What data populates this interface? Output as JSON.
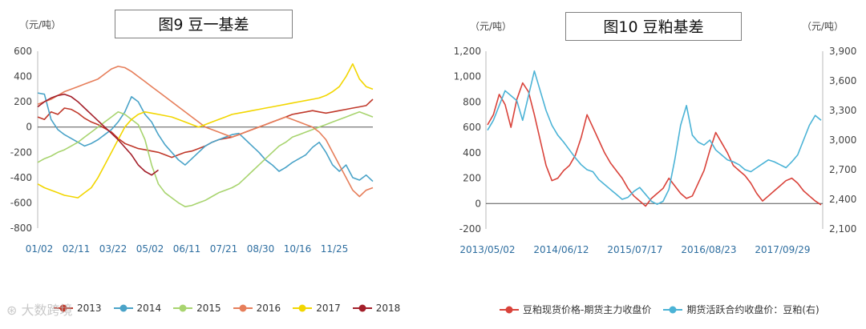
{
  "watermark": "大数跨境",
  "chart_data": [
    {
      "type": "line",
      "title": "图9 豆一基差",
      "unit_label": "（元/吨）",
      "ylim": [
        -800,
        600
      ],
      "yticks": [
        600,
        400,
        200,
        0,
        -200,
        -400,
        -600,
        -800
      ],
      "x_tick_labels": [
        "01/02",
        "02/11",
        "03/22",
        "05/02",
        "06/11",
        "07/21",
        "08/30",
        "10/16",
        "11/25"
      ],
      "grid": false,
      "legend_position": "bottom",
      "series": [
        {
          "name": "2013",
          "color": "#c0392b",
          "values": [
            80,
            60,
            120,
            100,
            150,
            140,
            110,
            70,
            40,
            20,
            -10,
            -40,
            -90,
            -130,
            -150,
            -170,
            -180,
            -190,
            -200,
            -220,
            -240,
            -220,
            -200,
            -190,
            -170,
            -150,
            -120,
            -100,
            -90,
            -80,
            -60,
            -40,
            -20,
            0,
            20,
            40,
            60,
            80,
            100,
            110,
            120,
            130,
            120,
            110,
            120,
            130,
            140,
            150,
            160,
            170,
            220
          ]
        },
        {
          "name": "2014",
          "color": "#4aa3c8",
          "values": [
            270,
            260,
            60,
            -20,
            -60,
            -90,
            -120,
            -150,
            -130,
            -100,
            -60,
            -20,
            40,
            120,
            240,
            200,
            100,
            40,
            -60,
            -140,
            -200,
            -260,
            -300,
            -250,
            -200,
            -150,
            -120,
            -100,
            -80,
            -60,
            -50,
            -100,
            -150,
            -200,
            -260,
            -300,
            -350,
            -320,
            -280,
            -250,
            -220,
            -160,
            -120,
            -200,
            -300,
            -350,
            -300,
            -400,
            -420,
            -380,
            -430
          ]
        },
        {
          "name": "2015",
          "color": "#a8d46f",
          "values": [
            -280,
            -250,
            -230,
            -200,
            -180,
            -150,
            -120,
            -80,
            -40,
            0,
            40,
            80,
            120,
            100,
            60,
            20,
            -100,
            -300,
            -450,
            -520,
            -560,
            -600,
            -630,
            -620,
            -600,
            -580,
            -550,
            -520,
            -500,
            -480,
            -450,
            -400,
            -350,
            -300,
            -250,
            -200,
            -150,
            -120,
            -80,
            -60,
            -40,
            -20,
            0,
            20,
            40,
            60,
            80,
            100,
            120,
            100,
            80
          ]
        },
        {
          "name": "2016",
          "color": "#e67e5a",
          "values": [
            180,
            200,
            220,
            250,
            280,
            300,
            320,
            340,
            360,
            380,
            420,
            460,
            480,
            470,
            440,
            400,
            360,
            320,
            280,
            240,
            200,
            160,
            120,
            80,
            40,
            0,
            -20,
            -40,
            -60,
            -80,
            -60,
            -40,
            -20,
            0,
            20,
            40,
            60,
            80,
            60,
            40,
            20,
            0,
            -40,
            -100,
            -200,
            -300,
            -400,
            -500,
            -550,
            -500,
            -480
          ]
        },
        {
          "name": "2017",
          "color": "#f2d600",
          "values": [
            -450,
            -480,
            -500,
            -520,
            -540,
            -550,
            -560,
            -520,
            -480,
            -400,
            -300,
            -200,
            -100,
            0,
            60,
            100,
            120,
            110,
            100,
            90,
            80,
            60,
            40,
            20,
            0,
            20,
            40,
            60,
            80,
            100,
            110,
            120,
            130,
            140,
            150,
            160,
            170,
            180,
            190,
            200,
            210,
            220,
            230,
            250,
            280,
            320,
            400,
            500,
            380,
            320,
            300
          ]
        },
        {
          "name": "2018",
          "color": "#a31f2a",
          "values": [
            160,
            200,
            230,
            250,
            260,
            240,
            200,
            150,
            100,
            50,
            0,
            -50,
            -100,
            -160,
            -220,
            -300,
            -350,
            -380,
            -340
          ]
        }
      ]
    },
    {
      "type": "line",
      "title": "图10 豆粕基差",
      "unit_label_left": "（元/吨）",
      "unit_label_right": "（元/吨）",
      "ylim": [
        -200,
        1200
      ],
      "yticks": [
        1200,
        1000,
        800,
        600,
        400,
        200,
        0,
        -200
      ],
      "ytick_labels": [
        "1,200",
        "1,000",
        "800",
        "600",
        "400",
        "200",
        "0",
        "-200"
      ],
      "y2lim": [
        2100,
        3900
      ],
      "y2ticks": [
        3900,
        3600,
        3300,
        3000,
        2700,
        2400,
        2100
      ],
      "y2tick_labels": [
        "3,900",
        "3,600",
        "3,300",
        "3,000",
        "2,700",
        "2,400",
        "2,100"
      ],
      "x_tick_labels": [
        "2013/05/02",
        "2014/06/12",
        "2015/07/17",
        "2016/08/23",
        "2017/09/29"
      ],
      "grid": false,
      "legend_position": "bottom",
      "series": [
        {
          "name": "豆粕现货价格-期货主力收盘价",
          "color": "#d9423a",
          "axis": "left",
          "values": [
            620,
            700,
            860,
            780,
            600,
            820,
            950,
            880,
            700,
            500,
            300,
            180,
            200,
            260,
            300,
            380,
            520,
            700,
            600,
            500,
            400,
            320,
            260,
            200,
            120,
            60,
            20,
            -20,
            40,
            80,
            120,
            200,
            140,
            80,
            40,
            60,
            160,
            260,
            420,
            560,
            480,
            400,
            300,
            260,
            220,
            160,
            80,
            20,
            60,
            100,
            140,
            180,
            200,
            160,
            100,
            60,
            20,
            -10
          ]
        },
        {
          "name": "期货活跃合约收盘价：豆粕(右)",
          "color": "#4bb3d6",
          "axis": "right",
          "values": [
            3100,
            3200,
            3350,
            3500,
            3450,
            3400,
            3200,
            3450,
            3700,
            3500,
            3300,
            3150,
            3050,
            2980,
            2900,
            2820,
            2750,
            2700,
            2680,
            2600,
            2550,
            2500,
            2450,
            2400,
            2420,
            2480,
            2520,
            2450,
            2380,
            2350,
            2380,
            2500,
            2800,
            3150,
            3350,
            3050,
            2980,
            2950,
            3000,
            2900,
            2850,
            2800,
            2780,
            2750,
            2700,
            2680,
            2720,
            2760,
            2800,
            2780,
            2750,
            2720,
            2780,
            2850,
            3000,
            3150,
            3250,
            3200
          ]
        }
      ]
    }
  ]
}
